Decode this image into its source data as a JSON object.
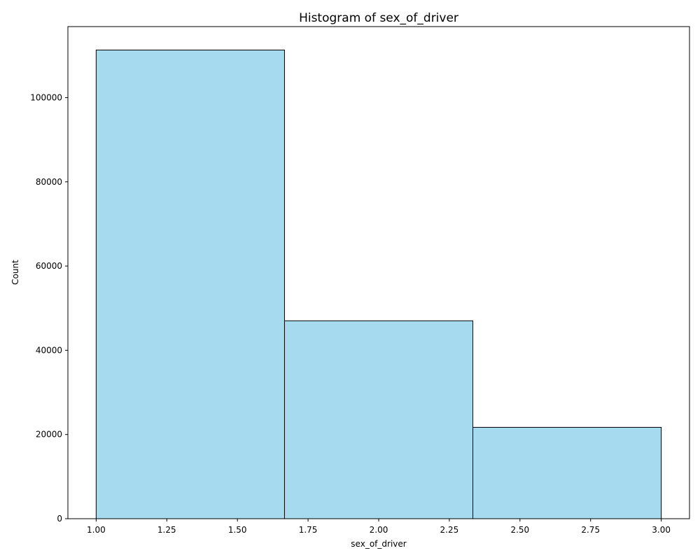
{
  "chart_data": {
    "type": "bar",
    "title": "Histogram of sex_of_driver",
    "xlabel": "sex_of_driver",
    "ylabel": "Count",
    "bins": [
      {
        "x0": 1.0,
        "x1": 1.6667,
        "count": 111300
      },
      {
        "x0": 1.6667,
        "x1": 2.3333,
        "count": 47000
      },
      {
        "x0": 2.3333,
        "x1": 3.0,
        "count": 21700
      }
    ],
    "xlim": [
      0.9,
      3.1
    ],
    "ylim": [
      0,
      116865
    ],
    "x_ticks": [
      1.0,
      1.25,
      1.5,
      1.75,
      2.0,
      2.25,
      2.5,
      2.75,
      3.0
    ],
    "x_tick_labels": [
      "1.00",
      "1.25",
      "1.50",
      "1.75",
      "2.00",
      "2.25",
      "2.50",
      "2.75",
      "3.00"
    ],
    "y_ticks": [
      0,
      20000,
      40000,
      60000,
      80000,
      100000
    ],
    "y_tick_labels": [
      "0",
      "20000",
      "40000",
      "60000",
      "80000",
      "100000"
    ],
    "grid": false,
    "bar_color": "#a6daef",
    "bar_edge_color": "#000000"
  }
}
